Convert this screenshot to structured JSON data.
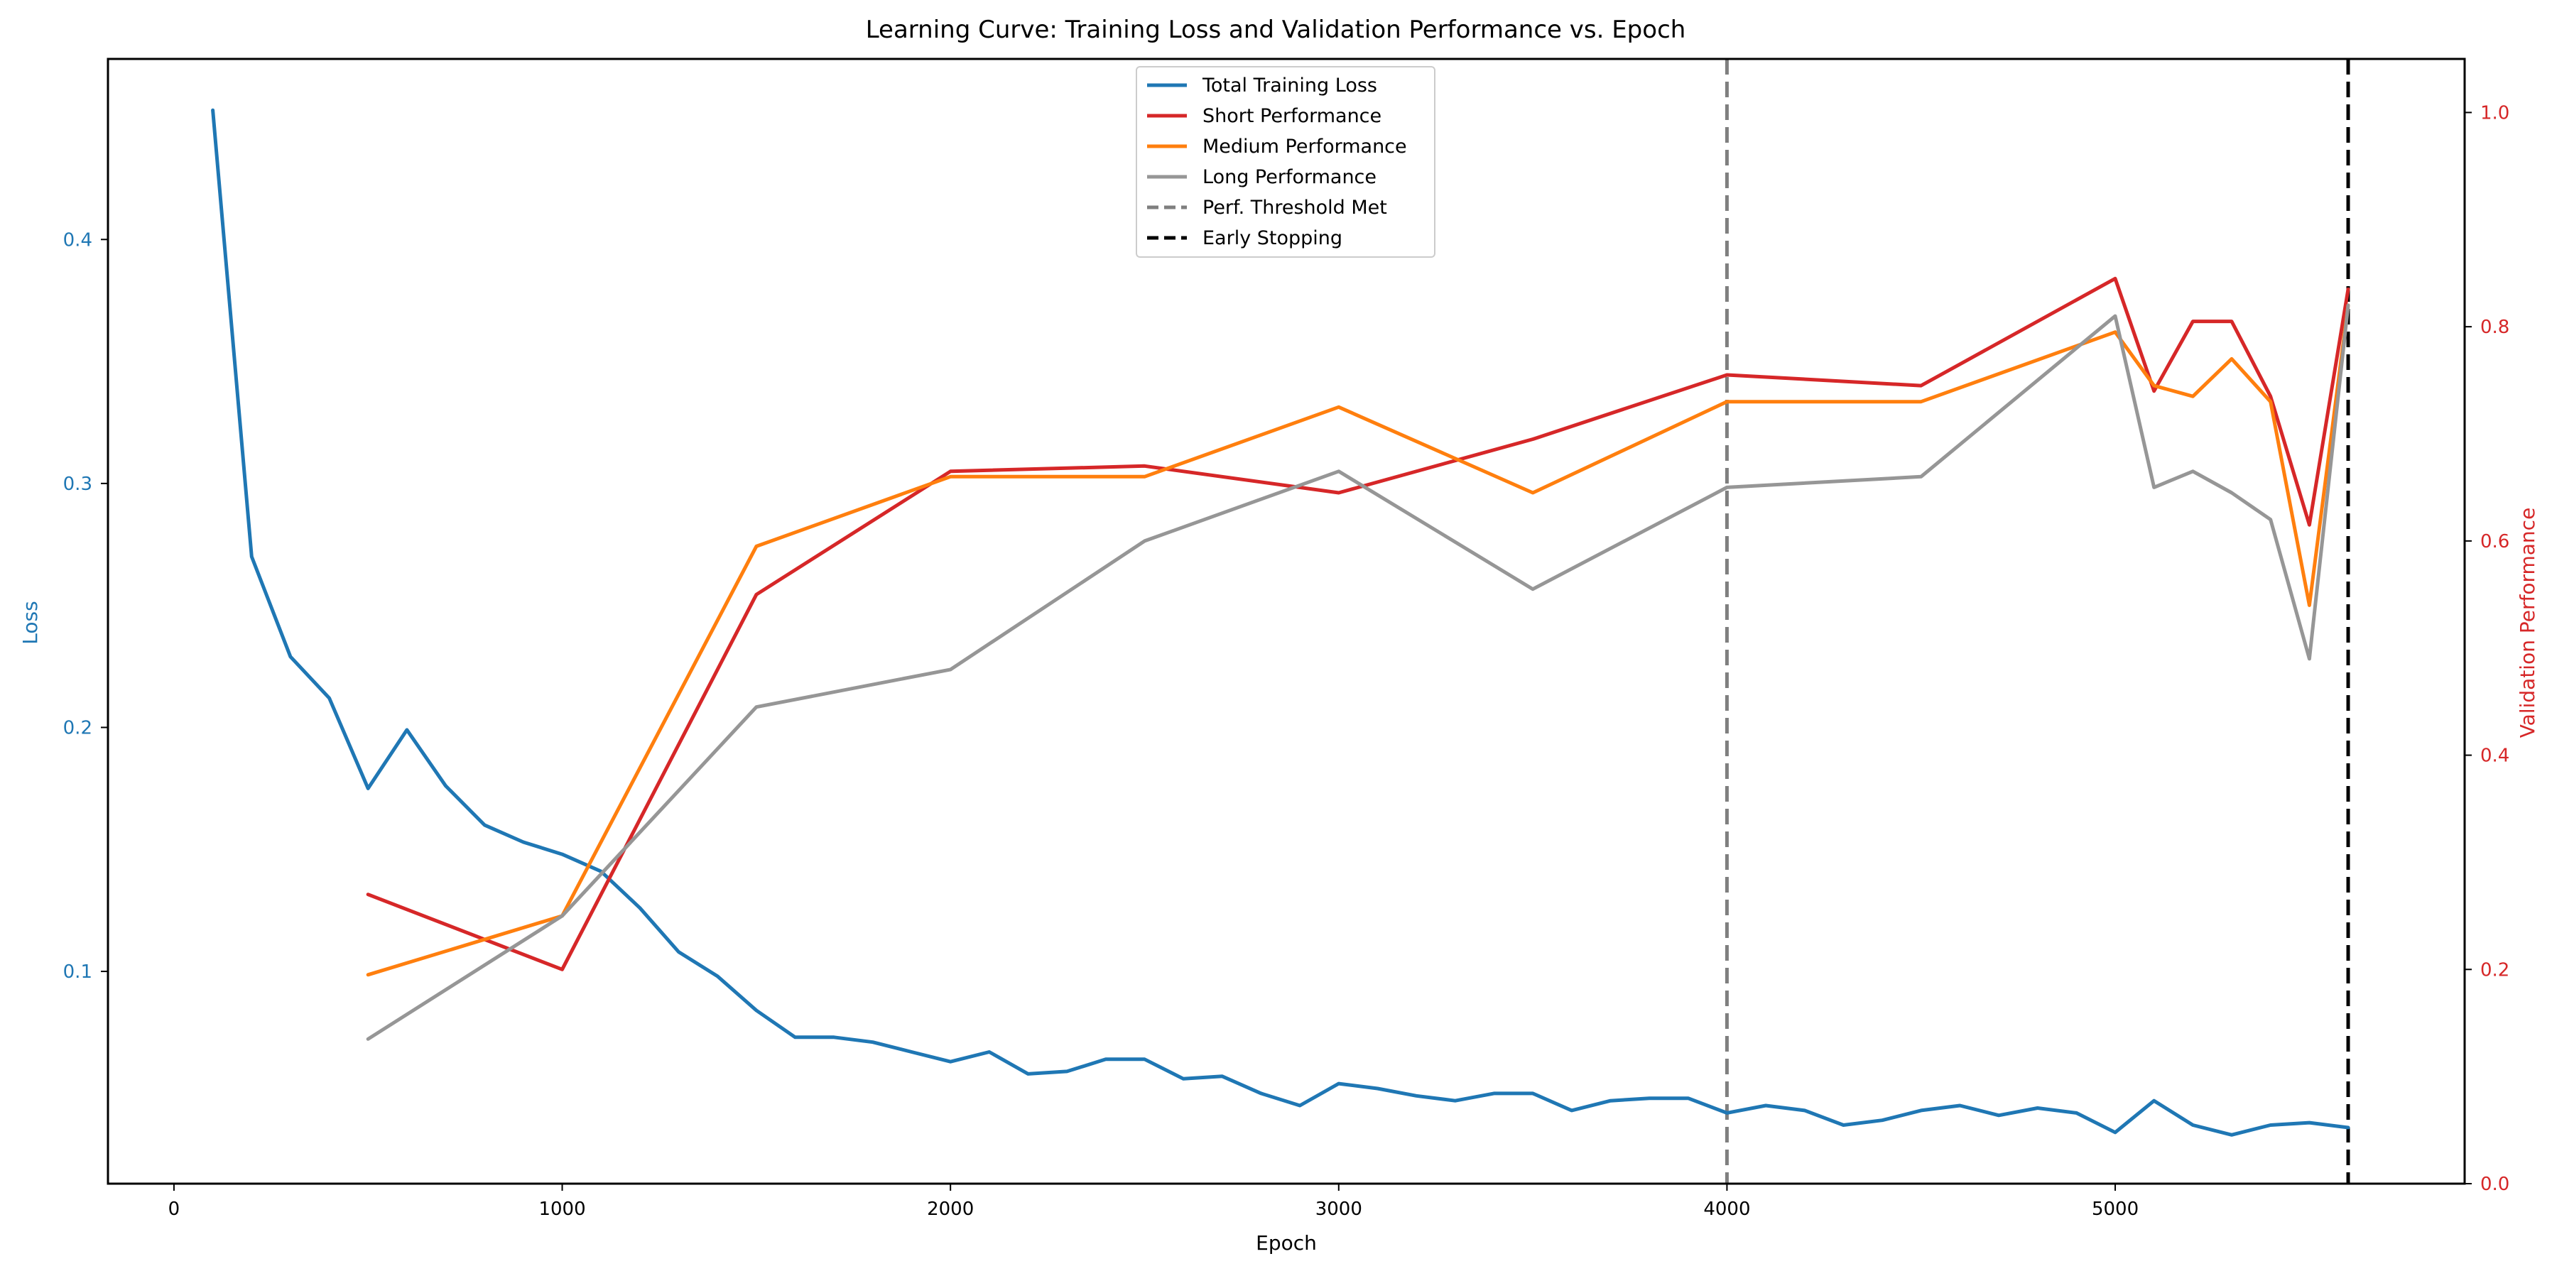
{
  "chart_data": {
    "type": "line",
    "title": "Learning Curve: Training Loss and Validation Performance vs. Epoch",
    "xlabel": "Epoch",
    "ylabel_left": "Loss",
    "ylabel_right": "Validation Performance",
    "xlim": [
      -170,
      5900
    ],
    "ylim_left": [
      0.013,
      0.474
    ],
    "ylim_right": [
      0.0,
      1.05
    ],
    "x_ticks": [
      0,
      1000,
      2000,
      3000,
      4000,
      5000
    ],
    "y_ticks_left": [
      0.1,
      0.2,
      0.3,
      0.4
    ],
    "y_ticks_right": [
      0.0,
      0.2,
      0.4,
      0.6,
      0.8,
      1.0
    ],
    "x_tick_labels": [
      "0",
      "1000",
      "2000",
      "3000",
      "4000",
      "5000"
    ],
    "y_tick_labels_left": [
      "0.1",
      "0.2",
      "0.3",
      "0.4"
    ],
    "y_tick_labels_right": [
      "0.0",
      "0.2",
      "0.4",
      "0.6",
      "0.8",
      "1.0"
    ],
    "legend_position": "top-center",
    "grid": false,
    "colors": {
      "loss": "#1f77b4",
      "short": "#d62728",
      "medium": "#ff7f0e",
      "long": "#969696",
      "threshold": "#7f7f7f",
      "early_stop": "#000000",
      "left_axis": "#1f77b4",
      "right_axis": "#d62728"
    },
    "series": [
      {
        "name": "Total Training Loss",
        "axis": "left",
        "x": [
          100,
          200,
          300,
          400,
          500,
          600,
          700,
          800,
          900,
          1000,
          1100,
          1200,
          1300,
          1400,
          1500,
          1600,
          1700,
          1800,
          1900,
          2000,
          2100,
          2200,
          2300,
          2400,
          2500,
          2600,
          2700,
          2800,
          2900,
          3000,
          3100,
          3200,
          3300,
          3400,
          3500,
          3600,
          3700,
          3800,
          3900,
          4000,
          4100,
          4200,
          4300,
          4400,
          4500,
          4600,
          4700,
          4800,
          4900,
          5000,
          5100,
          5200,
          5300,
          5400,
          5500,
          5600
        ],
        "y": [
          0.453,
          0.27,
          0.229,
          0.212,
          0.175,
          0.199,
          0.176,
          0.16,
          0.153,
          0.148,
          0.141,
          0.126,
          0.108,
          0.098,
          0.084,
          0.073,
          0.073,
          0.071,
          0.067,
          0.063,
          0.067,
          0.058,
          0.059,
          0.064,
          0.064,
          0.056,
          0.057,
          0.05,
          0.045,
          0.054,
          0.052,
          0.049,
          0.047,
          0.05,
          0.05,
          0.043,
          0.047,
          0.048,
          0.048,
          0.042,
          0.045,
          0.043,
          0.037,
          0.039,
          0.043,
          0.045,
          0.041,
          0.044,
          0.042,
          0.034,
          0.047,
          0.037,
          0.033,
          0.037,
          0.038,
          0.036
        ]
      },
      {
        "name": "Short Performance",
        "axis": "right",
        "x": [
          500,
          1000,
          1500,
          2000,
          2500,
          3000,
          3500,
          4000,
          4500,
          5000,
          5100,
          5200,
          5300,
          5400,
          5500,
          5600
        ],
        "y": [
          0.27,
          0.2,
          0.55,
          0.665,
          0.67,
          0.645,
          0.695,
          0.755,
          0.745,
          0.845,
          0.74,
          0.805,
          0.805,
          0.735,
          0.615,
          0.835
        ]
      },
      {
        "name": "Medium Performance",
        "axis": "right",
        "x": [
          500,
          1000,
          1500,
          2000,
          2500,
          3000,
          3500,
          4000,
          4500,
          5000,
          5100,
          5200,
          5300,
          5400,
          5500,
          5600
        ],
        "y": [
          0.195,
          0.25,
          0.595,
          0.66,
          0.66,
          0.725,
          0.645,
          0.73,
          0.73,
          0.795,
          0.745,
          0.735,
          0.77,
          0.73,
          0.54,
          0.82
        ]
      },
      {
        "name": "Long Performance",
        "axis": "right",
        "x": [
          500,
          1000,
          1500,
          2000,
          2500,
          3000,
          3500,
          4000,
          4500,
          5000,
          5100,
          5200,
          5300,
          5400,
          5500,
          5600
        ],
        "y": [
          0.135,
          0.25,
          0.445,
          0.48,
          0.6,
          0.665,
          0.555,
          0.65,
          0.66,
          0.81,
          0.65,
          0.665,
          0.645,
          0.62,
          0.49,
          0.82
        ]
      }
    ],
    "vlines": [
      {
        "name": "Perf. Threshold Met",
        "x": 4000,
        "style": "dashed"
      },
      {
        "name": "Early Stopping",
        "x": 5600,
        "style": "dashed"
      }
    ]
  }
}
